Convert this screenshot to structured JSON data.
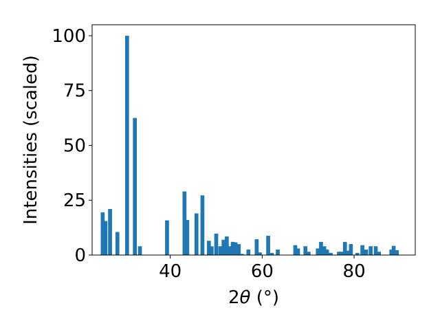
{
  "chart_data": {
    "type": "bar",
    "title": "",
    "xlabel_prefix": "2",
    "xlabel_theta": "θ",
    "xlabel_unit": " (°)",
    "ylabel": "Intensities (scaled)",
    "xlim": [
      23.0,
      93.3
    ],
    "ylim": [
      0,
      105
    ],
    "xticks": [
      40,
      60,
      80
    ],
    "yticks": [
      0,
      25,
      50,
      75,
      100
    ],
    "bar_width": 0.85,
    "grid": false,
    "bar_color": "#1f77b4",
    "x": [
      25.3,
      25.9,
      26.9,
      28.5,
      30.6,
      32.3,
      33.4,
      39.3,
      43.1,
      43.7,
      45.7,
      47.0,
      48.4,
      49.0,
      50.0,
      50.9,
      51.6,
      52.3,
      52.9,
      53.6,
      54.2,
      54.9,
      55.6,
      57.0,
      58.8,
      59.5,
      61.3,
      62.1,
      63.4,
      67.2,
      67.8,
      69.4,
      70.1,
      72.1,
      72.8,
      73.5,
      74.1,
      74.9,
      76.7,
      77.3,
      78.0,
      78.6,
      79.3,
      80.7,
      81.8,
      82.6,
      83.6,
      84.7,
      85.4,
      88.1,
      88.6,
      89.3
    ],
    "values": [
      19.5,
      15.5,
      21.0,
      10.5,
      100.0,
      62.5,
      4.0,
      15.8,
      29.0,
      16.0,
      19.0,
      27.2,
      6.5,
      4.0,
      9.8,
      4.0,
      7.0,
      8.5,
      4.0,
      6.0,
      5.8,
      5.0,
      0.5,
      2.5,
      7.2,
      1.2,
      8.8,
      1.0,
      2.5,
      4.5,
      3.0,
      4.0,
      1.5,
      3.0,
      6.0,
      4.0,
      2.5,
      1.0,
      1.5,
      1.5,
      6.0,
      2.0,
      5.0,
      1.0,
      4.5,
      2.5,
      4.0,
      4.0,
      1.5,
      2.5,
      4.2,
      2.2
    ]
  }
}
